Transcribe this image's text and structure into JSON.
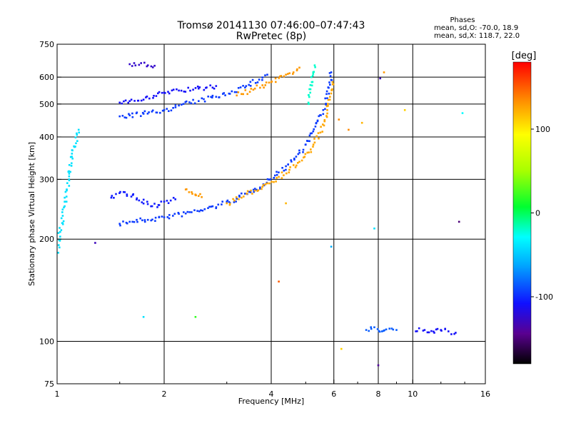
{
  "chart_data": {
    "type": "scatter",
    "title": "Tromsø 20141130 07:46:00–07:47:43",
    "subtitle": "RwPretec (8p)",
    "xlabel": "Frequency [MHz]",
    "ylabel": "Stationary phase Virtual Height [km]",
    "x_scale": "log",
    "y_scale": "log",
    "xlim": [
      1,
      16
    ],
    "ylim": [
      75,
      750
    ],
    "x_ticks": [
      "1",
      "2",
      "4",
      "6",
      "8",
      "10",
      "16"
    ],
    "x_tick_values": [
      1,
      2,
      4,
      6,
      8,
      10,
      16
    ],
    "y_ticks": [
      "750",
      "600",
      "500",
      "400",
      "300",
      "200",
      "100",
      "75"
    ],
    "y_tick_values": [
      750,
      600,
      500,
      400,
      300,
      200,
      100,
      75
    ],
    "grid": true,
    "stats": {
      "heading": "Phases",
      "line_o": "mean, sd,O: -70.0, 18.9",
      "line_x": "mean, sd,X: 118.7, 22.0"
    },
    "colorbar": {
      "label": "[deg]",
      "range": [
        -180,
        180
      ],
      "ticks": [
        "100",
        "0",
        "-100"
      ],
      "tick_values": [
        100,
        0,
        -100
      ]
    },
    "traces": [
      {
        "x": [
          1.5,
          1.6,
          1.8,
          2.0,
          2.3,
          2.6,
          2.9,
          3.2,
          3.5,
          3.8,
          4.1,
          4.4,
          4.7,
          5.0,
          5.2,
          5.4,
          5.6,
          5.75,
          5.85,
          5.9
        ],
        "y": [
          222,
          225,
          228,
          232,
          238,
          245,
          253,
          263,
          275,
          290,
          308,
          328,
          350,
          380,
          410,
          445,
          480,
          520,
          570,
          620
        ],
        "phase": -95
      },
      {
        "x": [
          3.0,
          3.3,
          3.6,
          3.9,
          4.2,
          4.5,
          4.8,
          5.1,
          5.3,
          5.5,
          5.65,
          5.75,
          5.85,
          5.95
        ],
        "y": [
          255,
          265,
          278,
          292,
          305,
          320,
          338,
          360,
          385,
          412,
          445,
          480,
          525,
          580
        ],
        "phase": 125
      },
      {
        "x": [
          1.5,
          1.6,
          1.75,
          1.9,
          2.0,
          2.2,
          2.5,
          2.8,
          3.1,
          3.4,
          3.7,
          3.9
        ],
        "y": [
          460,
          463,
          468,
          472,
          480,
          495,
          510,
          525,
          545,
          565,
          590,
          610
        ],
        "phase": -95
      },
      {
        "x": [
          1.5,
          1.6,
          1.75,
          1.9,
          2.0,
          2.2,
          2.5,
          2.8
        ],
        "y": [
          505,
          510,
          515,
          528,
          540,
          548,
          555,
          565
        ],
        "phase": -110
      },
      {
        "x": [
          3.2,
          3.6,
          4.0,
          4.4,
          4.8
        ],
        "y": [
          530,
          555,
          580,
          610,
          640
        ],
        "phase": 130
      },
      {
        "x": [
          1.42,
          1.55,
          1.7,
          1.85,
          2.0,
          2.15
        ],
        "y": [
          265,
          275,
          260,
          250,
          258,
          262
        ],
        "phase": -105
      },
      {
        "x": [
          2.3,
          2.35,
          2.4,
          2.45,
          2.5,
          2.55
        ],
        "y": [
          280,
          275,
          272,
          270,
          268,
          266
        ],
        "phase": 130
      },
      {
        "x": [
          1.6,
          1.7,
          1.8,
          1.88
        ],
        "y": [
          655,
          652,
          650,
          648
        ],
        "phase": -125
      },
      {
        "x": [
          5.1,
          5.15,
          5.2,
          5.25,
          5.3
        ],
        "y": [
          500,
          540,
          580,
          620,
          650
        ],
        "phase": -20
      },
      {
        "x": [
          1.0,
          1.02,
          1.05,
          1.08,
          1.1,
          1.15
        ],
        "y": [
          180,
          210,
          250,
          300,
          350,
          420
        ],
        "phase": -40
      },
      {
        "x": [
          7.4,
          7.8,
          8.2,
          8.6,
          9.0
        ],
        "y": [
          108,
          110,
          107,
          109,
          108
        ],
        "phase": -85
      },
      {
        "x": [
          10.2,
          10.8,
          11.5,
          12.0,
          12.6,
          13.2
        ],
        "y": [
          107,
          108,
          106,
          108,
          107,
          106
        ],
        "phase": -110
      }
    ],
    "isolated_points": [
      {
        "x": 1.28,
        "y": 195,
        "phase": -130
      },
      {
        "x": 13.5,
        "y": 225,
        "phase": -150
      },
      {
        "x": 8.0,
        "y": 85,
        "phase": -140
      },
      {
        "x": 4.4,
        "y": 255,
        "phase": 120
      },
      {
        "x": 6.3,
        "y": 95,
        "phase": 110
      },
      {
        "x": 7.8,
        "y": 215,
        "phase": -40
      },
      {
        "x": 4.2,
        "y": 150,
        "phase": 150
      },
      {
        "x": 5.9,
        "y": 190,
        "phase": -60
      },
      {
        "x": 1.75,
        "y": 118,
        "phase": -40
      },
      {
        "x": 2.45,
        "y": 118,
        "phase": 20
      },
      {
        "x": 9.5,
        "y": 480,
        "phase": 110
      },
      {
        "x": 13.8,
        "y": 470,
        "phase": -30
      },
      {
        "x": 8.1,
        "y": 595,
        "phase": -130
      },
      {
        "x": 8.3,
        "y": 620,
        "phase": 130
      },
      {
        "x": 6.2,
        "y": 450,
        "phase": 135
      },
      {
        "x": 6.6,
        "y": 420,
        "phase": 135
      },
      {
        "x": 7.2,
        "y": 440,
        "phase": 120
      }
    ]
  }
}
